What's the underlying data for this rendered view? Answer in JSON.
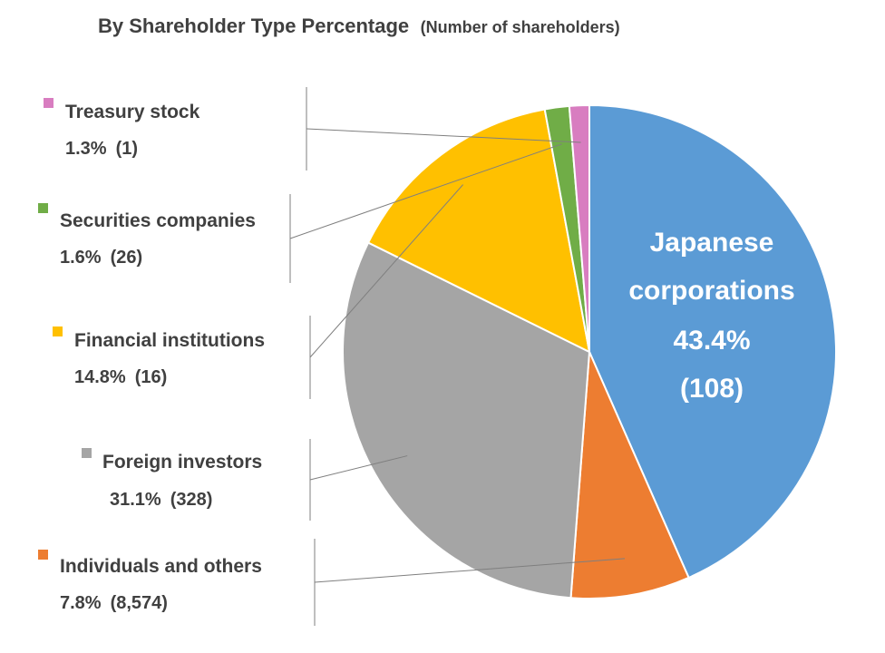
{
  "chart_data": {
    "type": "pie",
    "title": "By Shareholder Type Percentage",
    "subtitle": "(Number of shareholders)",
    "slices": [
      {
        "label": "Japanese corporations",
        "label_lines": [
          "Japanese",
          "corporations"
        ],
        "percent": 43.4,
        "percent_text": "43.4%",
        "count_text": "(108)",
        "color": "#5b9bd5",
        "placement": "inside"
      },
      {
        "label": "Individuals and others",
        "percent": 7.8,
        "percent_text": "7.8%",
        "count_text": "(8,574)",
        "color": "#ed7d31",
        "placement": "left"
      },
      {
        "label": "Foreign investors",
        "percent": 31.1,
        "percent_text": "31.1%",
        "count_text": "(328)",
        "color": "#a5a5a5",
        "placement": "left"
      },
      {
        "label": "Financial institutions",
        "percent": 14.8,
        "percent_text": "14.8%",
        "count_text": "(16)",
        "color": "#ffc000",
        "placement": "left"
      },
      {
        "label": "Securities companies",
        "percent": 1.6,
        "percent_text": "1.6%",
        "count_text": "(26)",
        "color": "#70ad47",
        "placement": "left"
      },
      {
        "label": "Treasury stock",
        "percent": 1.3,
        "percent_text": "1.3%",
        "count_text": "(1)",
        "color": "#d87dc0",
        "placement": "left"
      }
    ]
  }
}
